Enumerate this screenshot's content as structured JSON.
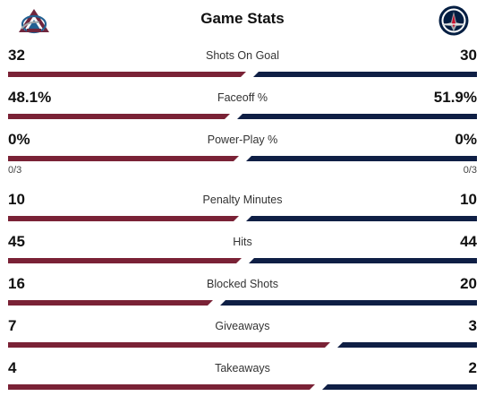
{
  "header": {
    "title": "Game Stats",
    "home_logo": "avalanche-logo-icon",
    "away_logo": "jets-logo-icon"
  },
  "colors": {
    "home": "#7a2236",
    "away": "#0f1f45"
  },
  "stats": [
    {
      "label": "Shots On Goal",
      "home": "32",
      "away": "30",
      "home_share": 0.516
    },
    {
      "label": "Faceoff %",
      "home": "48.1%",
      "away": "51.9%",
      "home_share": 0.481
    },
    {
      "label": "Power-Play %",
      "home": "0%",
      "away": "0%",
      "home_share": 0.5,
      "home_sub": "0/3",
      "away_sub": "0/3"
    },
    {
      "label": "Penalty Minutes",
      "home": "10",
      "away": "10",
      "home_share": 0.5
    },
    {
      "label": "Hits",
      "home": "45",
      "away": "44",
      "home_share": 0.506
    },
    {
      "label": "Blocked Shots",
      "home": "16",
      "away": "20",
      "home_share": 0.444
    },
    {
      "label": "Giveaways",
      "home": "7",
      "away": "3",
      "home_share": 0.7
    },
    {
      "label": "Takeaways",
      "home": "4",
      "away": "2",
      "home_share": 0.667
    }
  ]
}
